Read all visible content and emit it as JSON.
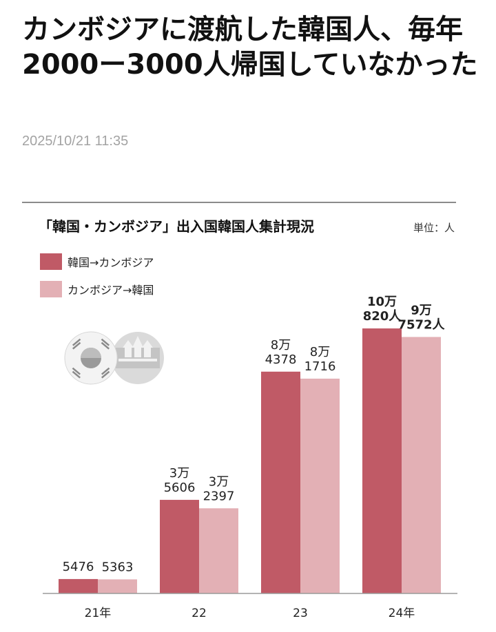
{
  "article": {
    "headline": "カンボジアに渡航した韓国人、毎年2000ー3000人帰国していなかった",
    "datetime": "2025/10/21 11:35"
  },
  "chart_data": {
    "type": "bar",
    "title": "「韓国・カンボジア」出入国韓国人集計現況",
    "unit_label": "単位：人",
    "categories": [
      "21年",
      "22",
      "23",
      "24年"
    ],
    "series": [
      {
        "name": "韓国→カンボジア",
        "color": "#c05a66",
        "values": [
          5476,
          35606,
          84378,
          100820
        ],
        "labels": [
          [
            "5476"
          ],
          [
            "3万",
            "5606"
          ],
          [
            "8万",
            "4378"
          ],
          [
            "10万",
            "820人"
          ]
        ]
      },
      {
        "name": "カンボジア→韓国",
        "color": "#e3b0b5",
        "values": [
          5363,
          32397,
          81716,
          97572
        ],
        "labels": [
          [
            "5363"
          ],
          [
            "3万",
            "2397"
          ],
          [
            "8万",
            "1716"
          ],
          [
            "9万",
            "7572人"
          ]
        ]
      }
    ],
    "ylim": [
      0,
      110000
    ],
    "grid": false,
    "legend_position": "top-left",
    "flags_icon": "korea-cambodia-flags-icon"
  }
}
